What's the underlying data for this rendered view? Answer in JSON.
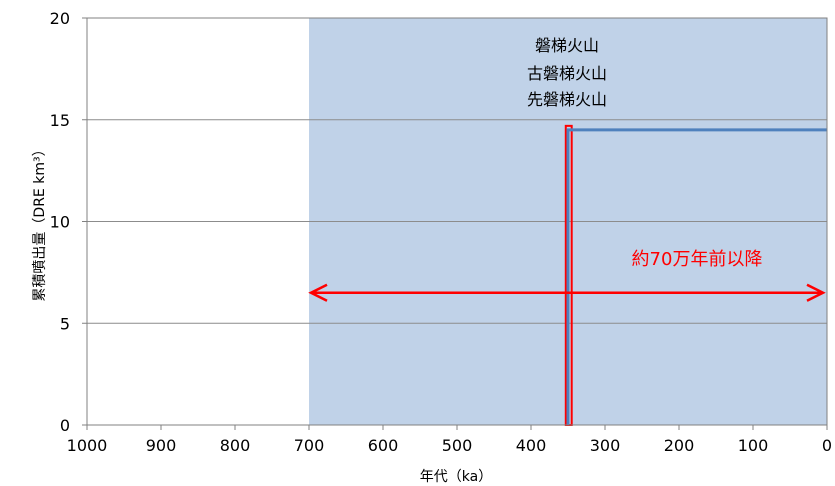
{
  "chart_data": {
    "type": "line",
    "xlabel": "年代（ka）",
    "ylabel": "累積噴出量（DRE km³）",
    "xlim": [
      1000,
      0
    ],
    "ylim": [
      0,
      20
    ],
    "x_reversed": true,
    "xticks": [
      1000,
      900,
      800,
      700,
      600,
      500,
      400,
      300,
      200,
      100,
      0
    ],
    "yticks": [
      0,
      5,
      10,
      15,
      20
    ],
    "grid": "horizontal",
    "shaded_range": {
      "from": 700,
      "to": 0,
      "color": "#c0d2e8"
    },
    "series": [
      {
        "color": "#4f81bd",
        "x": [
          350,
          350,
          0
        ],
        "y": [
          0,
          14.5,
          14.5
        ]
      }
    ],
    "highlight_bar": {
      "x_from": 353,
      "x_to": 345,
      "y_to": 14.7,
      "color": "#ff0000"
    },
    "volcano_labels": [
      "磐梯火山",
      "古磐梯火山",
      "先磐梯火山"
    ],
    "annotation": {
      "text": "約70万年前以降",
      "arrow_from": 700,
      "arrow_to": 0,
      "arrow_y": 6.5,
      "color": "#ff0000"
    }
  }
}
